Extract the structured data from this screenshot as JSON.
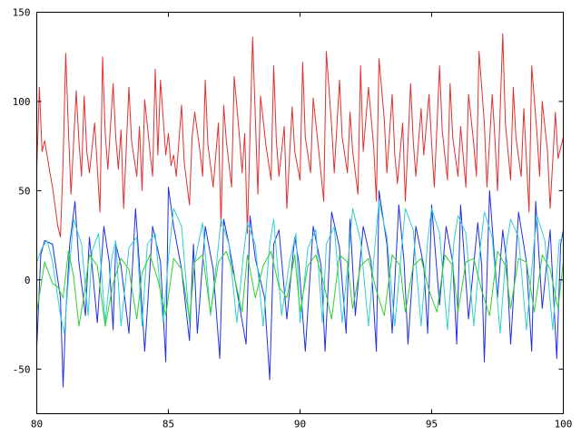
{
  "chart_data": {
    "type": "line",
    "title": "",
    "xlabel": "",
    "ylabel": "",
    "xlim": [
      80,
      100
    ],
    "ylim": [
      -75,
      150
    ],
    "grid": false,
    "legend": "none",
    "xticks": [
      80,
      85,
      90,
      95,
      100
    ],
    "yticks": [
      150,
      100,
      50,
      0,
      -50
    ],
    "series": [
      {
        "color": "#e03030",
        "x": [
          80.0,
          80.1,
          80.2,
          80.3,
          80.5,
          80.6,
          80.8,
          80.9,
          81.0,
          81.1,
          81.2,
          81.3,
          81.5,
          81.6,
          81.7,
          81.8,
          81.9,
          82.0,
          82.2,
          82.4,
          82.5,
          82.6,
          82.7,
          82.9,
          83.0,
          83.1,
          83.2,
          83.3,
          83.5,
          83.6,
          83.8,
          83.9,
          84.0,
          84.1,
          84.3,
          84.4,
          84.5,
          84.6,
          84.7,
          84.9,
          85.0,
          85.1,
          85.2,
          85.3,
          85.5,
          85.6,
          85.8,
          85.9,
          86.0,
          86.2,
          86.3,
          86.4,
          86.5,
          86.7,
          86.9,
          87.0,
          87.1,
          87.2,
          87.4,
          87.5,
          87.7,
          87.8,
          87.9,
          88.0,
          88.2,
          88.3,
          88.4,
          88.5,
          88.7,
          88.9,
          89.0,
          89.1,
          89.2,
          89.4,
          89.5,
          89.7,
          89.8,
          90.0,
          90.1,
          90.2,
          90.4,
          90.5,
          90.7,
          90.9,
          91.0,
          91.2,
          91.3,
          91.5,
          91.6,
          91.8,
          91.9,
          92.0,
          92.2,
          92.3,
          92.4,
          92.6,
          92.8,
          92.9,
          93.0,
          93.2,
          93.3,
          93.5,
          93.6,
          93.7,
          93.9,
          94.0,
          94.2,
          94.3,
          94.4,
          94.6,
          94.7,
          94.9,
          95.0,
          95.1,
          95.3,
          95.4,
          95.6,
          95.7,
          95.8,
          96.0,
          96.1,
          96.3,
          96.4,
          96.6,
          96.7,
          96.8,
          97.0,
          97.1,
          97.3,
          97.4,
          97.5,
          97.7,
          97.8,
          98.0,
          98.1,
          98.2,
          98.4,
          98.5,
          98.7,
          98.8,
          99.0,
          99.1,
          99.2,
          99.4,
          99.5,
          99.7,
          99.8,
          100.0
        ],
        "y": [
          62,
          108,
          72,
          78,
          60,
          52,
          30,
          24,
          66,
          127,
          85,
          48,
          106,
          78,
          58,
          103,
          72,
          60,
          88,
          38,
          125,
          82,
          62,
          110,
          80,
          62,
          84,
          40,
          108,
          78,
          58,
          86,
          50,
          101,
          72,
          58,
          118,
          70,
          112,
          70,
          82,
          64,
          70,
          58,
          98,
          66,
          42,
          80,
          94,
          72,
          58,
          112,
          76,
          52,
          88,
          30,
          98,
          78,
          52,
          114,
          80,
          60,
          82,
          26,
          136,
          92,
          48,
          103,
          76,
          56,
          120,
          78,
          58,
          86,
          40,
          97,
          72,
          56,
          122,
          80,
          60,
          102,
          74,
          44,
          128,
          86,
          60,
          112,
          80,
          60,
          94,
          72,
          48,
          120,
          72,
          108,
          74,
          44,
          124,
          90,
          60,
          104,
          70,
          54,
          88,
          44,
          110,
          78,
          58,
          96,
          70,
          104,
          76,
          52,
          120,
          84,
          56,
          110,
          80,
          58,
          86,
          52,
          104,
          76,
          58,
          128,
          88,
          52,
          104,
          80,
          50,
          138,
          88,
          56,
          108,
          80,
          58,
          96,
          38,
          120,
          82,
          58,
          100,
          72,
          40,
          94,
          68,
          80
        ]
      },
      {
        "color": "#2030e0",
        "x": [
          80.0,
          80.15,
          80.3,
          80.6,
          80.9,
          81.0,
          81.1,
          81.25,
          81.45,
          81.6,
          81.85,
          82.0,
          82.1,
          82.3,
          82.55,
          82.75,
          82.9,
          83.0,
          83.2,
          83.5,
          83.75,
          83.9,
          84.1,
          84.4,
          84.7,
          84.9,
          85.0,
          85.2,
          85.5,
          85.8,
          85.95,
          86.1,
          86.4,
          86.7,
          86.95,
          87.1,
          87.3,
          87.6,
          87.95,
          88.1,
          88.3,
          88.65,
          88.85,
          89.0,
          89.2,
          89.5,
          89.8,
          89.95,
          90.2,
          90.5,
          90.8,
          90.95,
          91.2,
          91.5,
          91.75,
          91.9,
          92.1,
          92.4,
          92.7,
          92.9,
          93.0,
          93.3,
          93.5,
          93.75,
          93.95,
          94.1,
          94.4,
          94.7,
          94.85,
          95.0,
          95.3,
          95.55,
          95.8,
          95.95,
          96.1,
          96.4,
          96.75,
          96.9,
          97.0,
          97.2,
          97.5,
          97.7,
          97.85,
          98.0,
          98.3,
          98.6,
          98.8,
          98.95,
          99.2,
          99.5,
          99.75,
          99.9,
          100.0
        ],
        "y": [
          -38,
          14,
          22,
          20,
          -10,
          -60,
          -20,
          20,
          44,
          10,
          -20,
          24,
          8,
          -24,
          30,
          10,
          -28,
          20,
          8,
          -30,
          40,
          8,
          -40,
          30,
          10,
          -46,
          52,
          30,
          6,
          -34,
          20,
          -30,
          30,
          6,
          -44,
          34,
          20,
          -6,
          -36,
          36,
          12,
          -10,
          -56,
          20,
          28,
          -22,
          24,
          10,
          -40,
          30,
          8,
          -40,
          38,
          18,
          -30,
          34,
          -20,
          30,
          10,
          -40,
          50,
          20,
          -30,
          42,
          10,
          -36,
          30,
          8,
          -30,
          42,
          -14,
          30,
          10,
          -36,
          42,
          -22,
          32,
          8,
          -46,
          50,
          -10,
          28,
          10,
          -36,
          38,
          10,
          -40,
          44,
          -16,
          28,
          -44,
          20,
          28
        ]
      },
      {
        "color": "#30d0d0",
        "x": [
          80.0,
          80.2,
          80.4,
          80.6,
          80.9,
          81.05,
          81.2,
          81.4,
          81.7,
          81.95,
          82.1,
          82.35,
          82.6,
          82.85,
          83.0,
          83.2,
          83.5,
          83.8,
          84.0,
          84.2,
          84.5,
          84.8,
          85.0,
          85.2,
          85.5,
          85.8,
          86.0,
          86.3,
          86.6,
          86.85,
          87.0,
          87.3,
          87.6,
          87.85,
          88.0,
          88.3,
          88.6,
          88.85,
          89.0,
          89.3,
          89.6,
          89.85,
          90.0,
          90.3,
          90.6,
          90.85,
          91.0,
          91.3,
          91.6,
          91.85,
          92.0,
          92.3,
          92.6,
          92.85,
          93.0,
          93.3,
          93.6,
          93.85,
          94.0,
          94.3,
          94.6,
          94.85,
          95.0,
          95.3,
          95.6,
          95.85,
          96.0,
          96.3,
          96.6,
          96.85,
          97.0,
          97.3,
          97.6,
          97.85,
          98.0,
          98.3,
          98.6,
          98.85,
          99.0,
          99.3,
          99.6,
          99.85,
          100.0
        ],
        "y": [
          10,
          18,
          22,
          10,
          -20,
          -30,
          0,
          34,
          20,
          -20,
          16,
          26,
          -24,
          12,
          22,
          -26,
          18,
          24,
          -26,
          20,
          26,
          -24,
          12,
          40,
          30,
          -24,
          10,
          32,
          -20,
          12,
          34,
          20,
          -24,
          14,
          32,
          20,
          -26,
          20,
          34,
          -20,
          10,
          26,
          -24,
          18,
          28,
          -24,
          20,
          30,
          -24,
          14,
          40,
          22,
          -26,
          20,
          44,
          24,
          -26,
          16,
          40,
          28,
          -26,
          22,
          40,
          26,
          -28,
          22,
          36,
          26,
          -26,
          18,
          38,
          24,
          -30,
          20,
          34,
          24,
          -28,
          14,
          36,
          22,
          -28,
          22,
          24
        ]
      },
      {
        "color": "#30d030",
        "x": [
          80.0,
          80.3,
          80.6,
          80.8,
          81.0,
          81.2,
          81.4,
          81.6,
          81.8,
          82.0,
          82.3,
          82.6,
          82.9,
          83.2,
          83.5,
          83.8,
          84.0,
          84.3,
          84.6,
          84.9,
          85.2,
          85.5,
          85.8,
          86.0,
          86.3,
          86.6,
          86.9,
          87.2,
          87.5,
          87.8,
          88.0,
          88.3,
          88.6,
          88.9,
          89.2,
          89.5,
          89.8,
          90.0,
          90.3,
          90.6,
          90.9,
          91.2,
          91.5,
          91.8,
          92.0,
          92.3,
          92.6,
          92.9,
          93.2,
          93.5,
          93.8,
          94.0,
          94.3,
          94.6,
          94.9,
          95.2,
          95.5,
          95.8,
          96.0,
          96.3,
          96.6,
          96.9,
          97.2,
          97.5,
          97.8,
          98.0,
          98.3,
          98.6,
          98.9,
          99.2,
          99.5,
          99.8,
          100.0
        ],
        "y": [
          -18,
          10,
          -2,
          -4,
          -10,
          16,
          2,
          -26,
          -8,
          14,
          8,
          -26,
          -2,
          12,
          6,
          -22,
          4,
          14,
          0,
          -20,
          12,
          6,
          -22,
          10,
          14,
          -18,
          10,
          16,
          2,
          -18,
          14,
          -10,
          8,
          16,
          -4,
          -10,
          14,
          -18,
          8,
          14,
          -2,
          -22,
          14,
          10,
          -16,
          8,
          12,
          -6,
          -20,
          14,
          8,
          -18,
          8,
          12,
          -6,
          -18,
          14,
          8,
          -18,
          10,
          12,
          -6,
          -20,
          16,
          8,
          -16,
          12,
          10,
          -18,
          14,
          6,
          -16,
          10
        ]
      }
    ]
  }
}
